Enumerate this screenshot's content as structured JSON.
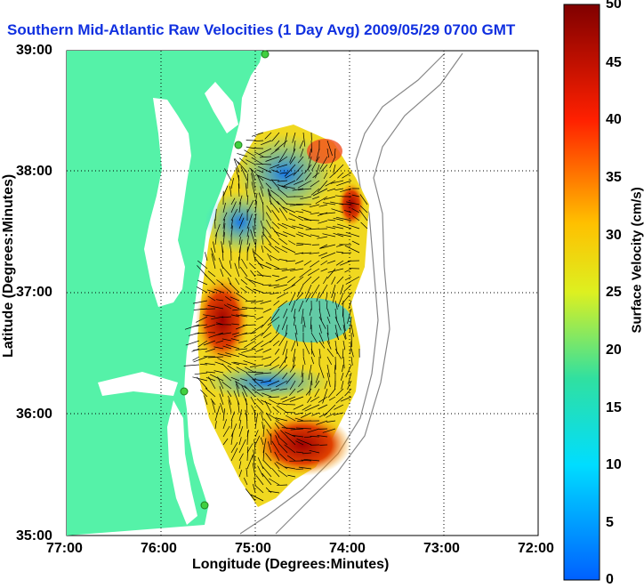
{
  "title": "Southern Mid-Atlantic Raw Velocities (1 Day Avg) 2009/05/29 0700 GMT",
  "xlabel": "Longitude (Degrees:Minutes)",
  "ylabel": "Latitude (Degrees:Minutes)",
  "x_ticks": [
    "77:00",
    "76:00",
    "75:00",
    "74:00",
    "73:00",
    "72:00"
  ],
  "y_ticks": [
    "39:00",
    "38:00",
    "37:00",
    "36:00",
    "35:00"
  ],
  "colorbar": {
    "label": "Surface Velocity (cm/s)",
    "ticks": [
      "50",
      "45",
      "40",
      "35",
      "30",
      "25",
      "20",
      "15",
      "10",
      "5",
      "0"
    ],
    "min": 0,
    "max": 50
  },
  "colors": {
    "land": "#55f2a8",
    "title": "#1030e0"
  }
}
